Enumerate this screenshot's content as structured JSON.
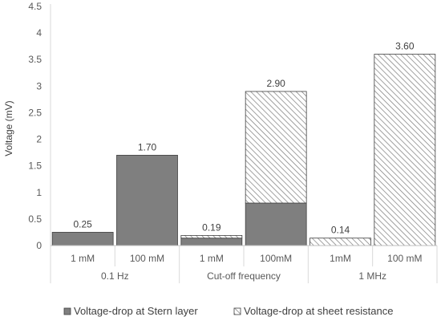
{
  "chart_data": {
    "type": "bar",
    "stacked": true,
    "ylabel": "Voltage (mV)",
    "ylim": [
      0,
      4.5
    ],
    "yticks": [
      "0",
      "0.5",
      "1",
      "1.5",
      "2",
      "2.5",
      "3",
      "3.5",
      "4",
      "4.5"
    ],
    "ytick_values": [
      0,
      0.5,
      1,
      1.5,
      2,
      2.5,
      3,
      3.5,
      4,
      4.5
    ],
    "grid": false,
    "groups": [
      {
        "label": "0.1 Hz",
        "categories": [
          "1 mM",
          "100 mM"
        ]
      },
      {
        "label": "Cut-off frequency",
        "categories": [
          "1 mM",
          "100mM"
        ]
      },
      {
        "label": "1 MHz",
        "categories": [
          "1mM",
          "100 mM"
        ]
      }
    ],
    "series": [
      {
        "name": "Voltage-drop at Stern layer",
        "values": [
          0.25,
          1.7,
          0.14,
          0.8,
          0.0,
          0.0
        ]
      },
      {
        "name": "Voltage-drop at sheet resistance",
        "values": [
          0.0,
          0.0,
          0.05,
          2.1,
          0.14,
          3.6
        ]
      }
    ],
    "totals": [
      "0.25",
      "1.70",
      "0.19",
      "2.90",
      "0.14",
      "3.60"
    ],
    "legend_position": "bottom"
  }
}
